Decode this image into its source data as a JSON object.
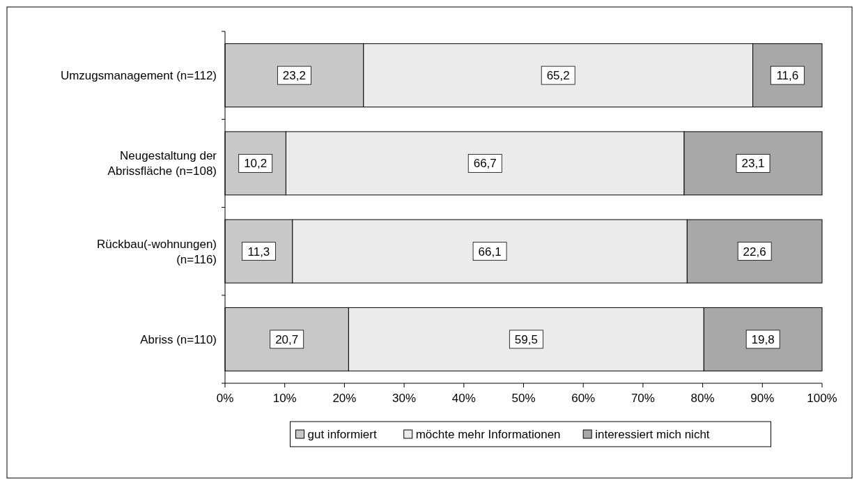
{
  "chart_data": {
    "type": "bar",
    "orientation": "horizontal",
    "stacked": true,
    "categories": [
      "Umzugsmanagement (n=112)",
      "Neugestaltung der Abrissfläche (n=108)",
      "Rückbau(-wohnungen) (n=116)",
      "Abriss (n=110)"
    ],
    "series": [
      {
        "name": "gut informiert",
        "color": "#c8c8c8",
        "values": [
          23.2,
          10.2,
          11.3,
          20.7
        ],
        "value_labels": [
          "23,2",
          "10,2",
          "11,3",
          "20,7"
        ]
      },
      {
        "name": "möchte mehr Informationen",
        "color": "#ebebeb",
        "values": [
          65.2,
          66.7,
          66.1,
          59.5
        ],
        "value_labels": [
          "65,2",
          "66,7",
          "66,1",
          "59,5"
        ]
      },
      {
        "name": "interessiert mich nicht",
        "color": "#a8a8a8",
        "values": [
          11.6,
          23.1,
          22.6,
          19.8
        ],
        "value_labels": [
          "11,6",
          "23,1",
          "22,6",
          "19,8"
        ]
      }
    ],
    "xlim": [
      0,
      100
    ],
    "xticks": [
      {
        "value": 0,
        "label": "0%"
      },
      {
        "value": 10,
        "label": "10%"
      },
      {
        "value": 20,
        "label": "20%"
      },
      {
        "value": 30,
        "label": "30%"
      },
      {
        "value": 40,
        "label": "40%"
      },
      {
        "value": 50,
        "label": "50%"
      },
      {
        "value": 60,
        "label": "60%"
      },
      {
        "value": 70,
        "label": "70%"
      },
      {
        "value": 80,
        "label": "80%"
      },
      {
        "value": 90,
        "label": "90%"
      },
      {
        "value": 100,
        "label": "100%"
      }
    ],
    "grid": false,
    "legend": "bottom"
  }
}
